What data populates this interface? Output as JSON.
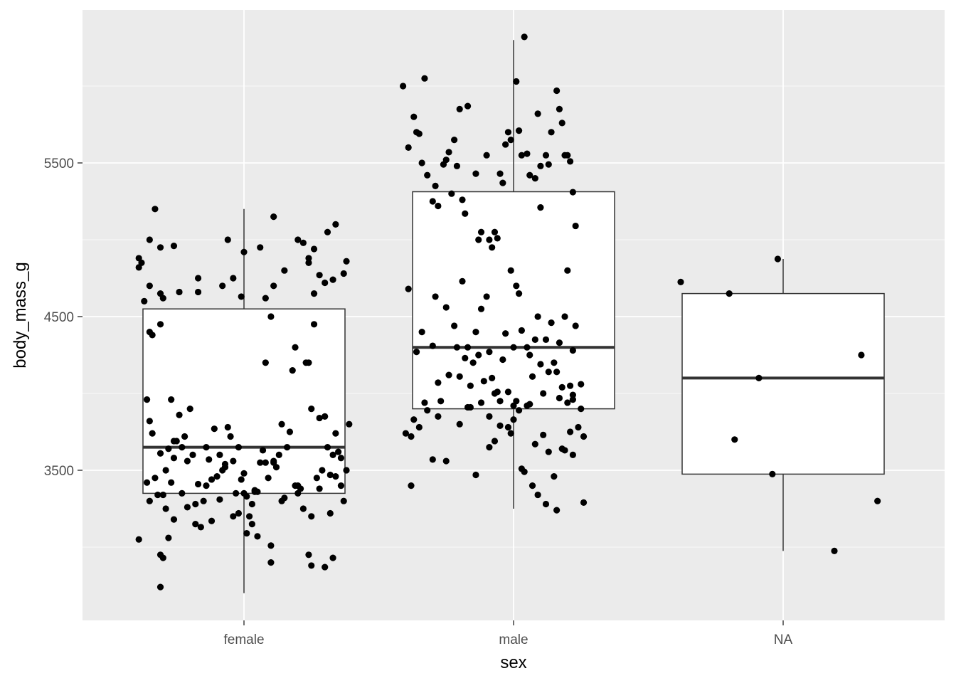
{
  "chart_data": {
    "type": "box",
    "xlabel": "sex",
    "ylabel": "body_mass_g",
    "categories": [
      "female",
      "male",
      "NA"
    ],
    "y_ticks": [
      3500,
      4500,
      5500
    ],
    "y_tick_labels": [
      "3500",
      "4500",
      "5500"
    ],
    "ylim": [
      2690,
      6340
    ],
    "grid": true,
    "colors": {
      "panel": "#ebebeb",
      "grid": "#ffffff",
      "box_fill": "#ffffff",
      "box_line": "#333333",
      "point": "#000000"
    },
    "boxes": [
      {
        "category": "female",
        "whisker_low": 2700,
        "q1": 3350,
        "median": 3650,
        "q3": 4550,
        "whisker_high": 5200
      },
      {
        "category": "male",
        "whisker_low": 3250,
        "q1": 3900,
        "median": 4300,
        "q3": 5312.5,
        "whisker_high": 6300
      },
      {
        "category": "NA",
        "whisker_low": 2975,
        "q1": 3475,
        "median": 4100,
        "q3": 4650,
        "whisker_high": 4875
      }
    ],
    "points": {
      "female": [
        [
          -0.39,
          4880
        ],
        [
          -0.39,
          4820
        ],
        [
          -0.38,
          4850
        ],
        [
          -0.37,
          4600
        ],
        [
          -0.35,
          5000
        ],
        [
          -0.35,
          4700
        ],
        [
          -0.35,
          4400
        ],
        [
          -0.34,
          4380
        ],
        [
          -0.33,
          5200
        ],
        [
          -0.31,
          4450
        ],
        [
          -0.31,
          4950
        ],
        [
          -0.31,
          4650
        ],
        [
          -0.3,
          4620
        ],
        [
          -0.26,
          4960
        ],
        [
          -0.24,
          4660
        ],
        [
          -0.17,
          4750
        ],
        [
          -0.17,
          4660
        ],
        [
          -0.08,
          4700
        ],
        [
          -0.06,
          5000
        ],
        [
          -0.04,
          4750
        ],
        [
          -0.01,
          4630
        ],
        [
          0.0,
          4920
        ],
        [
          0.06,
          4950
        ],
        [
          0.08,
          4620
        ],
        [
          0.11,
          4700
        ],
        [
          0.11,
          5150
        ],
        [
          0.15,
          4800
        ],
        [
          0.2,
          5000
        ],
        [
          0.22,
          4980
        ],
        [
          0.24,
          4880
        ],
        [
          0.26,
          4940
        ],
        [
          0.24,
          4850
        ],
        [
          0.26,
          4650
        ],
        [
          0.28,
          4770
        ],
        [
          0.3,
          4720
        ],
        [
          0.33,
          4740
        ],
        [
          0.31,
          5050
        ],
        [
          0.34,
          5100
        ],
        [
          0.37,
          4780
        ],
        [
          0.38,
          4860
        ],
        [
          -0.36,
          3960
        ],
        [
          -0.35,
          3820
        ],
        [
          -0.34,
          3740
        ],
        [
          -0.33,
          3450
        ],
        [
          -0.31,
          3610
        ],
        [
          -0.3,
          3340
        ],
        [
          -0.29,
          3500
        ],
        [
          -0.28,
          3640
        ],
        [
          -0.27,
          3960
        ],
        [
          -0.26,
          3690
        ],
        [
          -0.26,
          3580
        ],
        [
          -0.25,
          3690
        ],
        [
          -0.24,
          3860
        ],
        [
          -0.23,
          3650
        ],
        [
          -0.22,
          3720
        ],
        [
          -0.21,
          3260
        ],
        [
          -0.2,
          3900
        ],
        [
          -0.19,
          3600
        ],
        [
          -0.18,
          3280
        ],
        [
          -0.17,
          3410
        ],
        [
          -0.16,
          3130
        ],
        [
          -0.15,
          3300
        ],
        [
          -0.14,
          3650
        ],
        [
          -0.13,
          3570
        ],
        [
          -0.12,
          3440
        ],
        [
          -0.11,
          3770
        ],
        [
          -0.1,
          3460
        ],
        [
          -0.09,
          3310
        ],
        [
          -0.08,
          3500
        ],
        [
          -0.07,
          3520
        ],
        [
          -0.06,
          3780
        ],
        [
          -0.05,
          3720
        ],
        [
          -0.04,
          3560
        ],
        [
          -0.03,
          3350
        ],
        [
          -0.02,
          3650
        ],
        [
          -0.01,
          3440
        ],
        [
          0.0,
          3480
        ],
        [
          0.01,
          3330
        ],
        [
          0.02,
          3200
        ],
        [
          0.03,
          3280
        ],
        [
          0.04,
          3370
        ],
        [
          0.05,
          3360
        ],
        [
          0.06,
          3550
        ],
        [
          0.07,
          3630
        ],
        [
          0.08,
          4200
        ],
        [
          0.09,
          3450
        ],
        [
          0.1,
          4500
        ],
        [
          0.11,
          3560
        ],
        [
          0.12,
          3520
        ],
        [
          0.13,
          3600
        ],
        [
          0.14,
          3800
        ],
        [
          0.15,
          3320
        ],
        [
          0.16,
          3650
        ],
        [
          0.17,
          3750
        ],
        [
          0.18,
          4150
        ],
        [
          0.19,
          4300
        ],
        [
          0.2,
          3350
        ],
        [
          0.21,
          3380
        ],
        [
          0.22,
          3250
        ],
        [
          0.23,
          4200
        ],
        [
          0.24,
          4200
        ],
        [
          0.25,
          3900
        ],
        [
          0.26,
          4450
        ],
        [
          0.27,
          3450
        ],
        [
          0.28,
          3380
        ],
        [
          0.29,
          3500
        ],
        [
          0.3,
          3850
        ],
        [
          0.31,
          3650
        ],
        [
          0.32,
          3470
        ],
        [
          0.33,
          3600
        ],
        [
          0.34,
          3740
        ],
        [
          0.35,
          3620
        ],
        [
          0.36,
          3400
        ],
        [
          0.37,
          3300
        ],
        [
          0.38,
          3500
        ],
        [
          0.39,
          3800
        ],
        [
          -0.36,
          3420
        ],
        [
          -0.32,
          3340
        ],
        [
          -0.29,
          3250
        ],
        [
          -0.26,
          3180
        ],
        [
          -0.23,
          3350
        ],
        [
          -0.18,
          3150
        ],
        [
          -0.14,
          3400
        ],
        [
          -0.09,
          3600
        ],
        [
          -0.04,
          3200
        ],
        [
          0.0,
          3350
        ],
        [
          0.08,
          3550
        ],
        [
          0.14,
          3300
        ],
        [
          0.19,
          3400
        ],
        [
          0.25,
          3200
        ],
        [
          0.32,
          3220
        ],
        [
          0.36,
          3580
        ],
        [
          -0.39,
          3050
        ],
        [
          -0.31,
          2950
        ],
        [
          -0.3,
          2930
        ],
        [
          -0.28,
          3060
        ],
        [
          -0.02,
          3220
        ],
        [
          0.01,
          3090
        ],
        [
          0.05,
          3070
        ],
        [
          0.1,
          3010
        ],
        [
          0.03,
          3150
        ],
        [
          0.1,
          2900
        ],
        [
          0.24,
          2950
        ],
        [
          0.25,
          2880
        ],
        [
          0.3,
          2870
        ],
        [
          0.33,
          2930
        ],
        [
          -0.31,
          2740
        ],
        [
          -0.35,
          3300
        ],
        [
          -0.27,
          3420
        ],
        [
          -0.21,
          3560
        ],
        [
          -0.12,
          3170
        ],
        [
          -0.07,
          3540
        ],
        [
          0.04,
          3360
        ],
        [
          0.11,
          3550
        ],
        [
          0.2,
          3400
        ],
        [
          0.28,
          3840
        ],
        [
          0.34,
          3460
        ]
      ],
      "male": [
        [
          -0.41,
          6000
        ],
        [
          -0.39,
          5600
        ],
        [
          -0.37,
          5800
        ],
        [
          -0.36,
          5700
        ],
        [
          -0.35,
          5690
        ],
        [
          -0.34,
          5500
        ],
        [
          -0.33,
          6050
        ],
        [
          -0.32,
          5420
        ],
        [
          -0.3,
          5250
        ],
        [
          -0.29,
          5350
        ],
        [
          -0.28,
          5220
        ],
        [
          -0.26,
          5490
        ],
        [
          -0.25,
          5520
        ],
        [
          -0.24,
          5570
        ],
        [
          -0.23,
          5300
        ],
        [
          -0.22,
          5650
        ],
        [
          -0.21,
          5480
        ],
        [
          -0.2,
          5850
        ],
        [
          -0.19,
          5260
        ],
        [
          -0.18,
          5170
        ],
        [
          -0.17,
          5870
        ],
        [
          -0.14,
          5430
        ],
        [
          -0.13,
          5000
        ],
        [
          -0.12,
          5050
        ],
        [
          -0.1,
          5550
        ],
        [
          -0.09,
          5000
        ],
        [
          -0.08,
          4950
        ],
        [
          -0.07,
          5050
        ],
        [
          -0.06,
          5010
        ],
        [
          -0.05,
          5430
        ],
        [
          -0.04,
          5370
        ],
        [
          -0.03,
          5620
        ],
        [
          -0.02,
          5700
        ],
        [
          -0.01,
          5650
        ],
        [
          0.01,
          6030
        ],
        [
          0.02,
          5710
        ],
        [
          0.03,
          5550
        ],
        [
          0.05,
          5560
        ],
        [
          0.06,
          5420
        ],
        [
          0.08,
          5400
        ],
        [
          0.09,
          5820
        ],
        [
          0.1,
          5210
        ],
        [
          0.12,
          5550
        ],
        [
          0.13,
          5490
        ],
        [
          0.14,
          5700
        ],
        [
          0.16,
          5970
        ],
        [
          0.17,
          5850
        ],
        [
          0.18,
          5760
        ],
        [
          0.19,
          5550
        ],
        [
          0.2,
          5550
        ],
        [
          0.21,
          5510
        ],
        [
          0.22,
          5310
        ],
        [
          0.23,
          5090
        ],
        [
          -0.39,
          4680
        ],
        [
          -0.36,
          4270
        ],
        [
          -0.34,
          4400
        ],
        [
          -0.3,
          4310
        ],
        [
          -0.29,
          4630
        ],
        [
          -0.28,
          4070
        ],
        [
          -0.25,
          4560
        ],
        [
          -0.22,
          4440
        ],
        [
          -0.21,
          4300
        ],
        [
          -0.2,
          4110
        ],
        [
          -0.19,
          4730
        ],
        [
          -0.18,
          4230
        ],
        [
          -0.17,
          4300
        ],
        [
          -0.16,
          4050
        ],
        [
          -0.15,
          4200
        ],
        [
          -0.14,
          4400
        ],
        [
          -0.13,
          4250
        ],
        [
          -0.12,
          4550
        ],
        [
          -0.11,
          4080
        ],
        [
          -0.1,
          4630
        ],
        [
          -0.09,
          4270
        ],
        [
          -0.08,
          4100
        ],
        [
          -0.07,
          4000
        ],
        [
          -0.06,
          4010
        ],
        [
          -0.05,
          3950
        ],
        [
          -0.04,
          4220
        ],
        [
          -0.03,
          4390
        ],
        [
          -0.02,
          4010
        ],
        [
          -0.01,
          4800
        ],
        [
          0.0,
          4300
        ],
        [
          0.01,
          4700
        ],
        [
          0.02,
          4650
        ],
        [
          0.03,
          4410
        ],
        [
          0.05,
          4300
        ],
        [
          0.06,
          4250
        ],
        [
          0.07,
          4110
        ],
        [
          0.08,
          4350
        ],
        [
          0.09,
          4500
        ],
        [
          0.1,
          4190
        ],
        [
          0.11,
          4000
        ],
        [
          0.12,
          4350
        ],
        [
          0.13,
          4140
        ],
        [
          0.14,
          4460
        ],
        [
          0.15,
          4200
        ],
        [
          0.16,
          4140
        ],
        [
          0.17,
          4330
        ],
        [
          0.18,
          4040
        ],
        [
          0.19,
          4500
        ],
        [
          0.2,
          4800
        ],
        [
          0.21,
          4050
        ],
        [
          0.22,
          4280
        ],
        [
          0.23,
          4440
        ],
        [
          -0.4,
          3740
        ],
        [
          -0.38,
          3720
        ],
        [
          -0.37,
          3830
        ],
        [
          -0.35,
          3780
        ],
        [
          -0.33,
          3940
        ],
        [
          -0.3,
          3570
        ],
        [
          -0.28,
          3850
        ],
        [
          -0.25,
          3560
        ],
        [
          -0.2,
          3800
        ],
        [
          -0.17,
          3910
        ],
        [
          -0.14,
          3470
        ],
        [
          -0.09,
          3650
        ],
        [
          -0.07,
          3690
        ],
        [
          -0.05,
          3790
        ],
        [
          -0.02,
          3780
        ],
        [
          0.0,
          3830
        ],
        [
          0.03,
          3510
        ],
        [
          0.05,
          3920
        ],
        [
          0.07,
          3400
        ],
        [
          0.09,
          3340
        ],
        [
          0.11,
          3730
        ],
        [
          0.13,
          3620
        ],
        [
          0.15,
          3460
        ],
        [
          0.18,
          3640
        ],
        [
          0.2,
          3940
        ],
        [
          0.25,
          3900
        ],
        [
          -0.38,
          3400
        ],
        [
          -0.01,
          3740
        ],
        [
          0.04,
          3490
        ],
        [
          0.08,
          3670
        ],
        [
          0.12,
          3280
        ],
        [
          0.16,
          3240
        ],
        [
          0.19,
          3630
        ],
        [
          0.22,
          3600
        ],
        [
          0.24,
          3780
        ],
        [
          0.26,
          3720
        ],
        [
          0.04,
          6320
        ],
        [
          0.1,
          5480
        ],
        [
          -0.24,
          4120
        ],
        [
          -0.12,
          3940
        ],
        [
          0.01,
          3950
        ],
        [
          0.0,
          3920
        ],
        [
          0.02,
          3890
        ],
        [
          -0.16,
          3910
        ],
        [
          -0.09,
          3850
        ],
        [
          0.06,
          3930
        ],
        [
          0.17,
          3970
        ],
        [
          0.22,
          3990
        ],
        [
          0.22,
          3960
        ],
        [
          0.25,
          4060
        ],
        [
          0.26,
          3290
        ],
        [
          0.21,
          3750
        ],
        [
          -0.27,
          3950
        ],
        [
          -0.32,
          3890
        ]
      ],
      "NA": [
        [
          -0.38,
          4725
        ],
        [
          -0.2,
          4650
        ],
        [
          -0.02,
          4875
        ],
        [
          -0.09,
          4100
        ],
        [
          -0.18,
          3700
        ],
        [
          -0.04,
          3475
        ],
        [
          0.29,
          4250
        ],
        [
          0.35,
          3300
        ],
        [
          0.19,
          2975
        ]
      ]
    }
  }
}
